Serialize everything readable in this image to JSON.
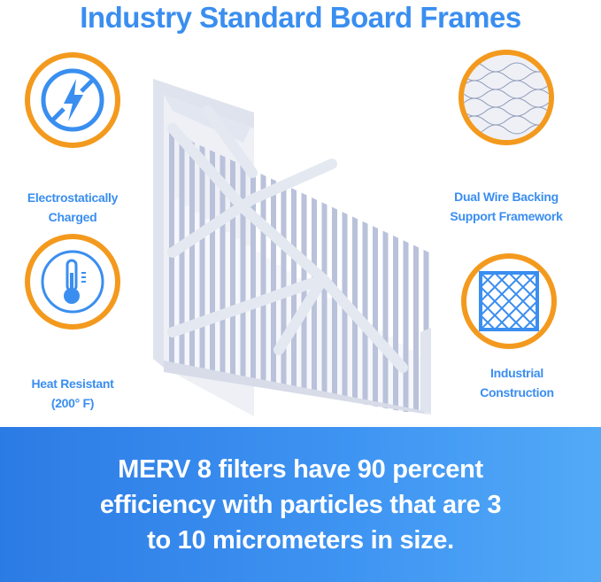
{
  "title": "Industry Standard Board Frames",
  "features": [
    {
      "label_line1": "Electrostatically",
      "label_line2": "Charged",
      "icon": "no-static-bolt-icon"
    },
    {
      "label_line1": "Heat Resistant",
      "label_line2": "(200° F)",
      "icon": "thermometer-icon"
    },
    {
      "label_line1": "Dual Wire Backing",
      "label_line2": "Support Framework",
      "icon": "wire-mesh-closeup-icon"
    },
    {
      "label_line1": "Industrial",
      "label_line2": "Construction",
      "icon": "grid-frame-icon"
    }
  ],
  "banner": {
    "lines": [
      "MERV 8 filters have 90 percent",
      "efficiency with particles that are 3",
      "to 10 micrometers in size."
    ]
  },
  "colors": {
    "accent_blue": "#3a8ef0",
    "ring_orange": "#f39a1e"
  }
}
